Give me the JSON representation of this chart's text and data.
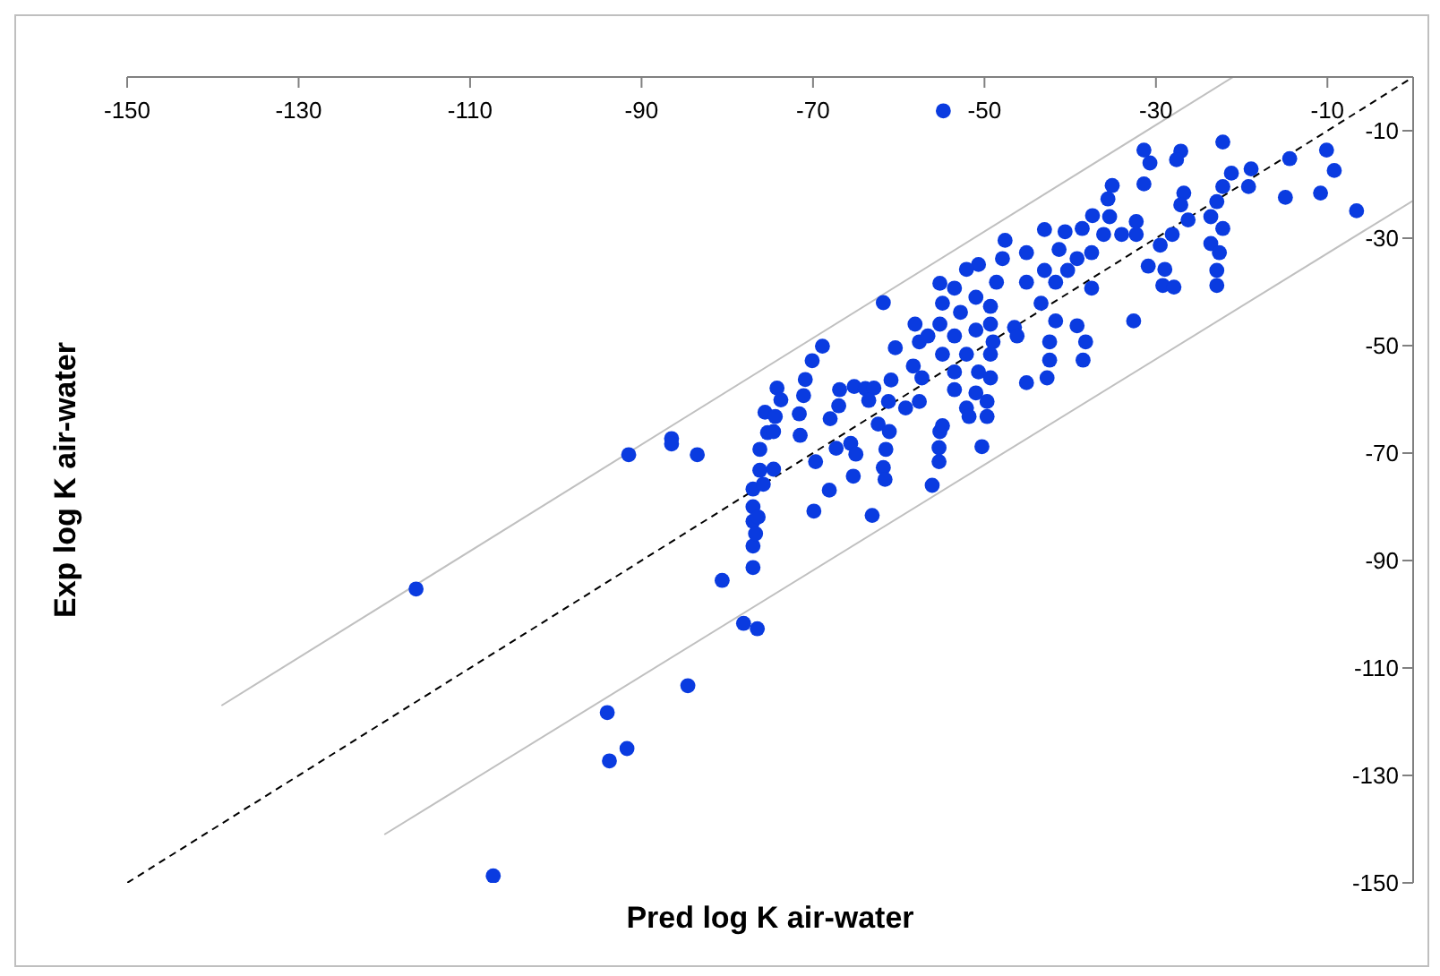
{
  "chart_data": {
    "type": "scatter",
    "xlabel": "Pred log K air-water",
    "ylabel": "Exp log K air-water",
    "xlim": [
      -150,
      0
    ],
    "ylim": [
      -150,
      0
    ],
    "xticks": [
      -150,
      -130,
      -110,
      -90,
      -70,
      -50,
      -30,
      -10
    ],
    "yticks": [
      -150,
      -130,
      -110,
      -90,
      -70,
      -50,
      -30,
      -10
    ],
    "grid": false,
    "legend": false,
    "marker": "circle",
    "series": [
      {
        "color": "#0a3be0",
        "x": [
          -54.8,
          -116.3,
          -107.3,
          -93.75,
          -94,
          -91.7,
          -84.6,
          -91.5,
          -86.5,
          -86.5,
          -83.5,
          -80.6,
          -78.1,
          -76.5,
          -77,
          -77,
          -77,
          -77,
          -77,
          -76.2,
          -76.2,
          -75.8,
          -74.6,
          -75.3,
          -74.6,
          -75.6,
          -74.4,
          -74.2,
          -73.75,
          -76.4,
          -76.7,
          -71.6,
          -71.5,
          -71.1,
          -70.9,
          -70.1,
          -68.9,
          -69.7,
          -68.1,
          -69.9,
          -68,
          -66.9,
          -67,
          -67.3,
          -65.6,
          -65,
          -65.3,
          -65.2,
          -63.9,
          -62.9,
          -63.5,
          -63.1,
          -61.8,
          -60.9,
          -61.2,
          -62.4,
          -61.1,
          -61.5,
          -61.8,
          -61.6,
          -60.4,
          -59.2,
          -58.1,
          -57.6,
          -56.6,
          -58.3,
          -57.3,
          -57.6,
          -56.1,
          -55.2,
          -54.9,
          -55.2,
          -55.2,
          -55.3,
          -55.3,
          -22.2,
          -31.4,
          -30.7,
          -27.1,
          -27.6,
          -18.9,
          -14.4,
          -10.1,
          -9.2,
          -6.6,
          -14.9,
          -10.8,
          -19.2,
          -21.2,
          -22.2,
          -22.9,
          -23.6,
          -22.2,
          -23.6,
          -22.6,
          -22.9,
          -22.9,
          -26.75,
          -27.1,
          -26.25,
          -28.1,
          -29.5,
          -28.96,
          -29.2,
          -27.9,
          -30.9,
          -31.4,
          -32.6,
          -35.1,
          -35.6,
          -37.4,
          -35.4,
          -32.3,
          -32.3,
          -34,
          -36.1,
          -37.5,
          -38.6,
          -40.6,
          -43,
          -41.3,
          -39.2,
          -40.3,
          -37.5,
          -41.7,
          -43,
          -45.1,
          -47.6,
          -47.9,
          -45.1,
          -43.4,
          -48.6,
          -50.7,
          -52.1,
          -53.5,
          -51,
          -49.3,
          -52.8,
          -49.3,
          -51,
          -53.5,
          -49,
          -46.5,
          -46.2,
          -41.7,
          -39.2,
          -42.4,
          -38.2,
          -42.4,
          -38.5,
          -42.7,
          -49.3,
          -52.1,
          -54.9,
          -53.5,
          -50.7,
          -49.3,
          -53.5,
          -51,
          -45.1,
          -49.7,
          -52.1,
          -49.7,
          -54.9,
          -51.8,
          -50.3
        ],
        "values": [
          -6.3,
          -95.3,
          -148.7,
          -127.3,
          -118.3,
          -125,
          -113.3,
          -70.3,
          -67.3,
          -68.3,
          -70.3,
          -93.7,
          -101.7,
          -102.7,
          -91.3,
          -87.3,
          -82.7,
          -80,
          -76.7,
          -69.3,
          -73.2,
          -75.8,
          -73,
          -66.2,
          -66,
          -62.4,
          -63.2,
          -57.9,
          -60.1,
          -81.9,
          -85,
          -62.7,
          -66.7,
          -59.3,
          -56.3,
          -52.8,
          -50.1,
          -71.6,
          -76.9,
          -80.8,
          -63.6,
          -58.2,
          -61.2,
          -69.1,
          -68.2,
          -70.2,
          -74.3,
          -57.6,
          -58,
          -57.9,
          -60.2,
          -81.6,
          -42,
          -56.4,
          -60.4,
          -64.6,
          -66,
          -69.3,
          -72.7,
          -74.9,
          -50.4,
          -61.6,
          -46,
          -49.3,
          -48.2,
          -53.8,
          -56,
          -60.4,
          -76,
          -38.4,
          -42.1,
          -46,
          -66,
          -69,
          -71.6,
          -12.1,
          -13.6,
          -16,
          -13.8,
          -15.4,
          -17.1,
          -15.2,
          -13.6,
          -17.4,
          -24.9,
          -22.4,
          -21.6,
          -20.4,
          -17.9,
          -20.4,
          -23.2,
          -26,
          -28.2,
          -31,
          -32.7,
          -36,
          -38.8,
          -21.6,
          -23.8,
          -26.6,
          -29.3,
          -31.3,
          -35.8,
          -38.8,
          -39.1,
          -35.2,
          -19.9,
          -45.4,
          -20.2,
          -22.7,
          -25.8,
          -26,
          -26.9,
          -29.3,
          -29.3,
          -29.3,
          -32.7,
          -28.2,
          -28.8,
          -28.4,
          -32.1,
          -33.8,
          -36,
          -39.3,
          -38.2,
          -36,
          -32.7,
          -30.4,
          -33.8,
          -38.2,
          -42.1,
          -38.2,
          -34.9,
          -35.8,
          -39.3,
          -41,
          -42.7,
          -43.8,
          -46,
          -47.1,
          -48.2,
          -49.3,
          -46.6,
          -48.2,
          -45.4,
          -46.3,
          -49.3,
          -49.3,
          -52.7,
          -52.7,
          -56,
          -51.6,
          -51.6,
          -51.6,
          -54.9,
          -54.9,
          -56,
          -58.2,
          -58.8,
          -56.9,
          -60.4,
          -61.6,
          -63.2,
          -64.9,
          -63.2,
          -68.8
        ]
      },
      {
        "type": "line",
        "color": "#000000",
        "line_style": "dashed",
        "marker": "none",
        "x": [
          -150,
          0
        ],
        "values": [
          -150,
          0
        ]
      },
      {
        "type": "line",
        "color": "#c0c0c0",
        "line_style": "solid",
        "marker": "none",
        "x": [
          -139,
          -21
        ],
        "values": [
          -117,
          0
        ]
      },
      {
        "type": "line",
        "color": "#c0c0c0",
        "line_style": "solid",
        "marker": "none",
        "x": [
          -120,
          0
        ],
        "values": [
          -141,
          -23
        ]
      }
    ]
  }
}
